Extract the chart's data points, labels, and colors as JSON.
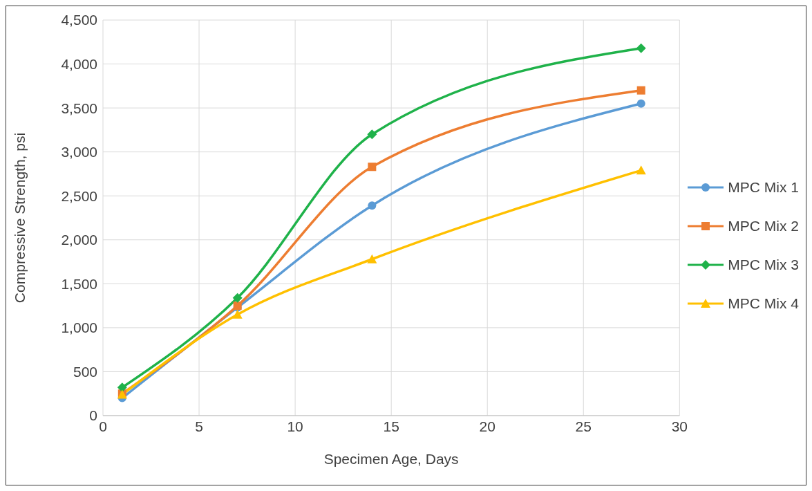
{
  "chart_data": {
    "type": "line",
    "xlabel": "Specimen Age, Days",
    "ylabel": "Compressive Strength, psi",
    "x": [
      1,
      7,
      14,
      28
    ],
    "series": [
      {
        "name": "MPC Mix 1",
        "color": "#5b9bd5",
        "marker": "circle",
        "values": [
          200,
          1230,
          2390,
          3550
        ]
      },
      {
        "name": "MPC Mix 2",
        "color": "#ed7d31",
        "marker": "square",
        "values": [
          250,
          1250,
          2830,
          3700
        ]
      },
      {
        "name": "MPC Mix 3",
        "color": "#1fb24a",
        "marker": "diamond",
        "values": [
          320,
          1340,
          3200,
          4180
        ]
      },
      {
        "name": "MPC Mix 4",
        "color": "#ffc000",
        "marker": "triangle",
        "values": [
          240,
          1150,
          1780,
          2790
        ]
      }
    ],
    "xlim": [
      0,
      30
    ],
    "xticks": [
      0,
      5,
      10,
      15,
      20,
      25,
      30
    ],
    "ylim": [
      0,
      4500
    ],
    "yticks": [
      0,
      500,
      {
        "value": 1000,
        "label": "1,000"
      },
      {
        "value": 1500,
        "label": "1,500"
      },
      {
        "value": 2000,
        "label": "2,000"
      },
      {
        "value": 2500,
        "label": "2,500"
      },
      {
        "value": 3000,
        "label": "3,000"
      },
      {
        "value": 3500,
        "label": "3,500"
      },
      {
        "value": 4000,
        "label": "4,000"
      },
      {
        "value": 4500,
        "label": "4,500"
      }
    ],
    "grid": true,
    "legend": "right"
  }
}
